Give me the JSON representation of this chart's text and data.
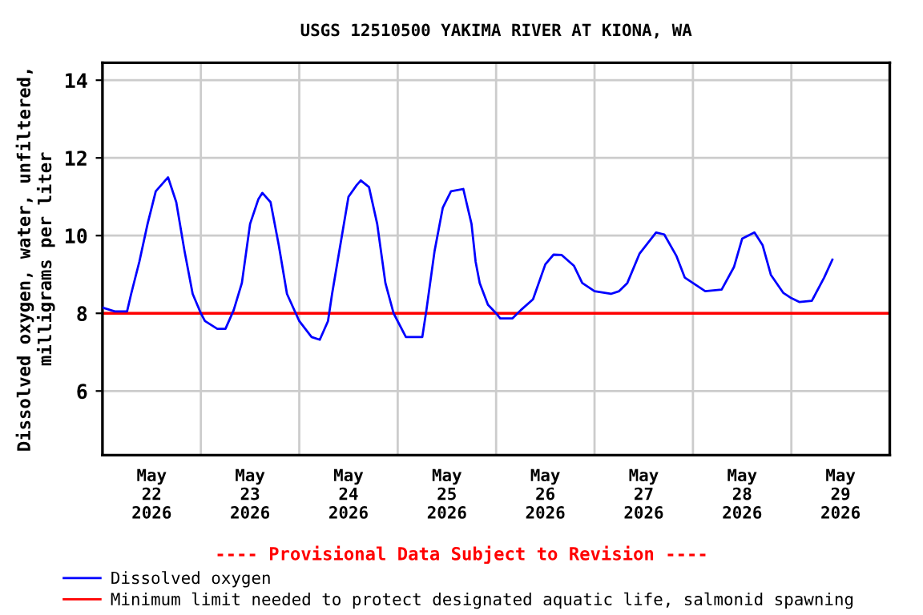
{
  "chart_data": {
    "type": "line",
    "title": "USGS 12510500 YAKIMA RIVER AT KIONA, WA",
    "ylabel": "Dissolved oxygen, water, unfiltered,\nmilligrams per liter",
    "annotations": [
      "---- Provisional Data Subject to Revision ----"
    ],
    "xlim": [
      "2026-05-22T00:00",
      "2026-05-30T00:00"
    ],
    "xticks": [
      {
        "value": "2026-05-22T00:00",
        "label": null
      },
      {
        "value": "2026-05-23T00:00",
        "label": null
      },
      {
        "value": "2026-05-24T00:00",
        "label": null
      },
      {
        "value": "2026-05-25T00:00",
        "label": null
      },
      {
        "value": "2026-05-26T00:00",
        "label": null
      },
      {
        "value": "2026-05-27T00:00",
        "label": null
      },
      {
        "value": "2026-05-28T00:00",
        "label": null
      },
      {
        "value": "2026-05-29T00:00",
        "label": null
      },
      {
        "value": "2026-05-30T00:00",
        "label": null
      },
      {
        "value": "2026-05-22T12:00",
        "label": "May\n22\n2026"
      },
      {
        "value": "2026-05-23T12:00",
        "label": "May\n23\n2026"
      },
      {
        "value": "2026-05-24T12:00",
        "label": "May\n24\n2026"
      },
      {
        "value": "2026-05-25T12:00",
        "label": "May\n25\n2026"
      },
      {
        "value": "2026-05-26T12:00",
        "label": "May\n26\n2026"
      },
      {
        "value": "2026-05-27T12:00",
        "label": "May\n27\n2026"
      },
      {
        "value": "2026-05-28T12:00",
        "label": "May\n28\n2026"
      },
      {
        "value": "2026-05-29T12:00",
        "label": "May\n29\n2026"
      }
    ],
    "ylim": [
      4.35,
      14.45
    ],
    "yticks": [
      6,
      8,
      10,
      12,
      14
    ],
    "grid": true,
    "legend": "bottom",
    "ref_lines": [
      {
        "axis": "y",
        "value": 8,
        "label": "Minimum limit needed to protect designated aquatic life, salmonid spawning",
        "color": "#ff0000"
      }
    ],
    "series": [
      {
        "name": "Dissolved oxygen",
        "color": "#0000ff",
        "x": [
          "2026-05-22T00:00",
          "2026-05-22T03:00",
          "2026-05-22T06:00",
          "2026-05-22T07:00",
          "2026-05-22T09:00",
          "2026-05-22T11:00",
          "2026-05-22T13:00",
          "2026-05-22T16:00",
          "2026-05-22T18:00",
          "2026-05-22T20:00",
          "2026-05-22T22:00",
          "2026-05-23T00:00",
          "2026-05-23T01:00",
          "2026-05-23T04:00",
          "2026-05-23T06:00",
          "2026-05-23T08:00",
          "2026-05-23T10:00",
          "2026-05-23T12:00",
          "2026-05-23T14:00",
          "2026-05-23T15:00",
          "2026-05-23T17:00",
          "2026-05-23T19:00",
          "2026-05-23T21:00",
          "2026-05-24T00:00",
          "2026-05-24T03:00",
          "2026-05-24T05:00",
          "2026-05-24T07:00",
          "2026-05-24T08:00",
          "2026-05-24T10:00",
          "2026-05-24T12:00",
          "2026-05-24T14:00",
          "2026-05-24T15:00",
          "2026-05-24T17:00",
          "2026-05-24T19:00",
          "2026-05-24T21:00",
          "2026-05-24T23:00",
          "2026-05-25T02:00",
          "2026-05-25T06:00",
          "2026-05-25T07:00",
          "2026-05-25T09:00",
          "2026-05-25T11:00",
          "2026-05-25T13:00",
          "2026-05-25T16:00",
          "2026-05-25T18:00",
          "2026-05-25T19:00",
          "2026-05-25T20:00",
          "2026-05-25T22:00",
          "2026-05-26T00:00",
          "2026-05-26T01:00",
          "2026-05-26T04:00",
          "2026-05-26T06:00",
          "2026-05-26T09:00",
          "2026-05-26T12:00",
          "2026-05-26T14:00",
          "2026-05-26T16:00",
          "2026-05-26T19:00",
          "2026-05-26T21:00",
          "2026-05-27T00:00",
          "2026-05-27T04:00",
          "2026-05-27T06:00",
          "2026-05-27T08:00",
          "2026-05-27T11:00",
          "2026-05-27T15:00",
          "2026-05-27T17:00",
          "2026-05-27T20:00",
          "2026-05-27T22:00",
          "2026-05-28T03:00",
          "2026-05-28T07:00",
          "2026-05-28T10:00",
          "2026-05-28T12:00",
          "2026-05-28T15:00",
          "2026-05-28T17:00",
          "2026-05-28T19:00",
          "2026-05-28T22:00",
          "2026-05-29T00:00",
          "2026-05-29T02:00",
          "2026-05-29T05:00",
          "2026-05-29T08:00",
          "2026-05-29T10:00"
        ],
        "values": [
          8.15,
          8.05,
          8.05,
          8.5,
          9.33,
          10.3,
          11.14,
          11.5,
          10.86,
          9.61,
          8.5,
          8.0,
          7.8,
          7.6,
          7.6,
          8.08,
          8.78,
          10.3,
          10.93,
          11.1,
          10.86,
          9.75,
          8.5,
          7.8,
          7.39,
          7.32,
          7.8,
          8.5,
          9.75,
          11.0,
          11.3,
          11.42,
          11.25,
          10.3,
          8.78,
          8.0,
          7.39,
          7.39,
          8.08,
          9.61,
          10.72,
          11.14,
          11.2,
          10.3,
          9.33,
          8.78,
          8.22,
          8.0,
          7.87,
          7.87,
          8.08,
          8.36,
          9.26,
          9.51,
          9.5,
          9.22,
          8.78,
          8.57,
          8.5,
          8.57,
          8.78,
          9.54,
          10.08,
          10.03,
          9.47,
          8.92,
          8.57,
          8.61,
          9.19,
          9.92,
          10.08,
          9.75,
          8.99,
          8.53,
          8.39,
          8.29,
          8.32,
          8.92,
          9.38
        ]
      }
    ]
  }
}
